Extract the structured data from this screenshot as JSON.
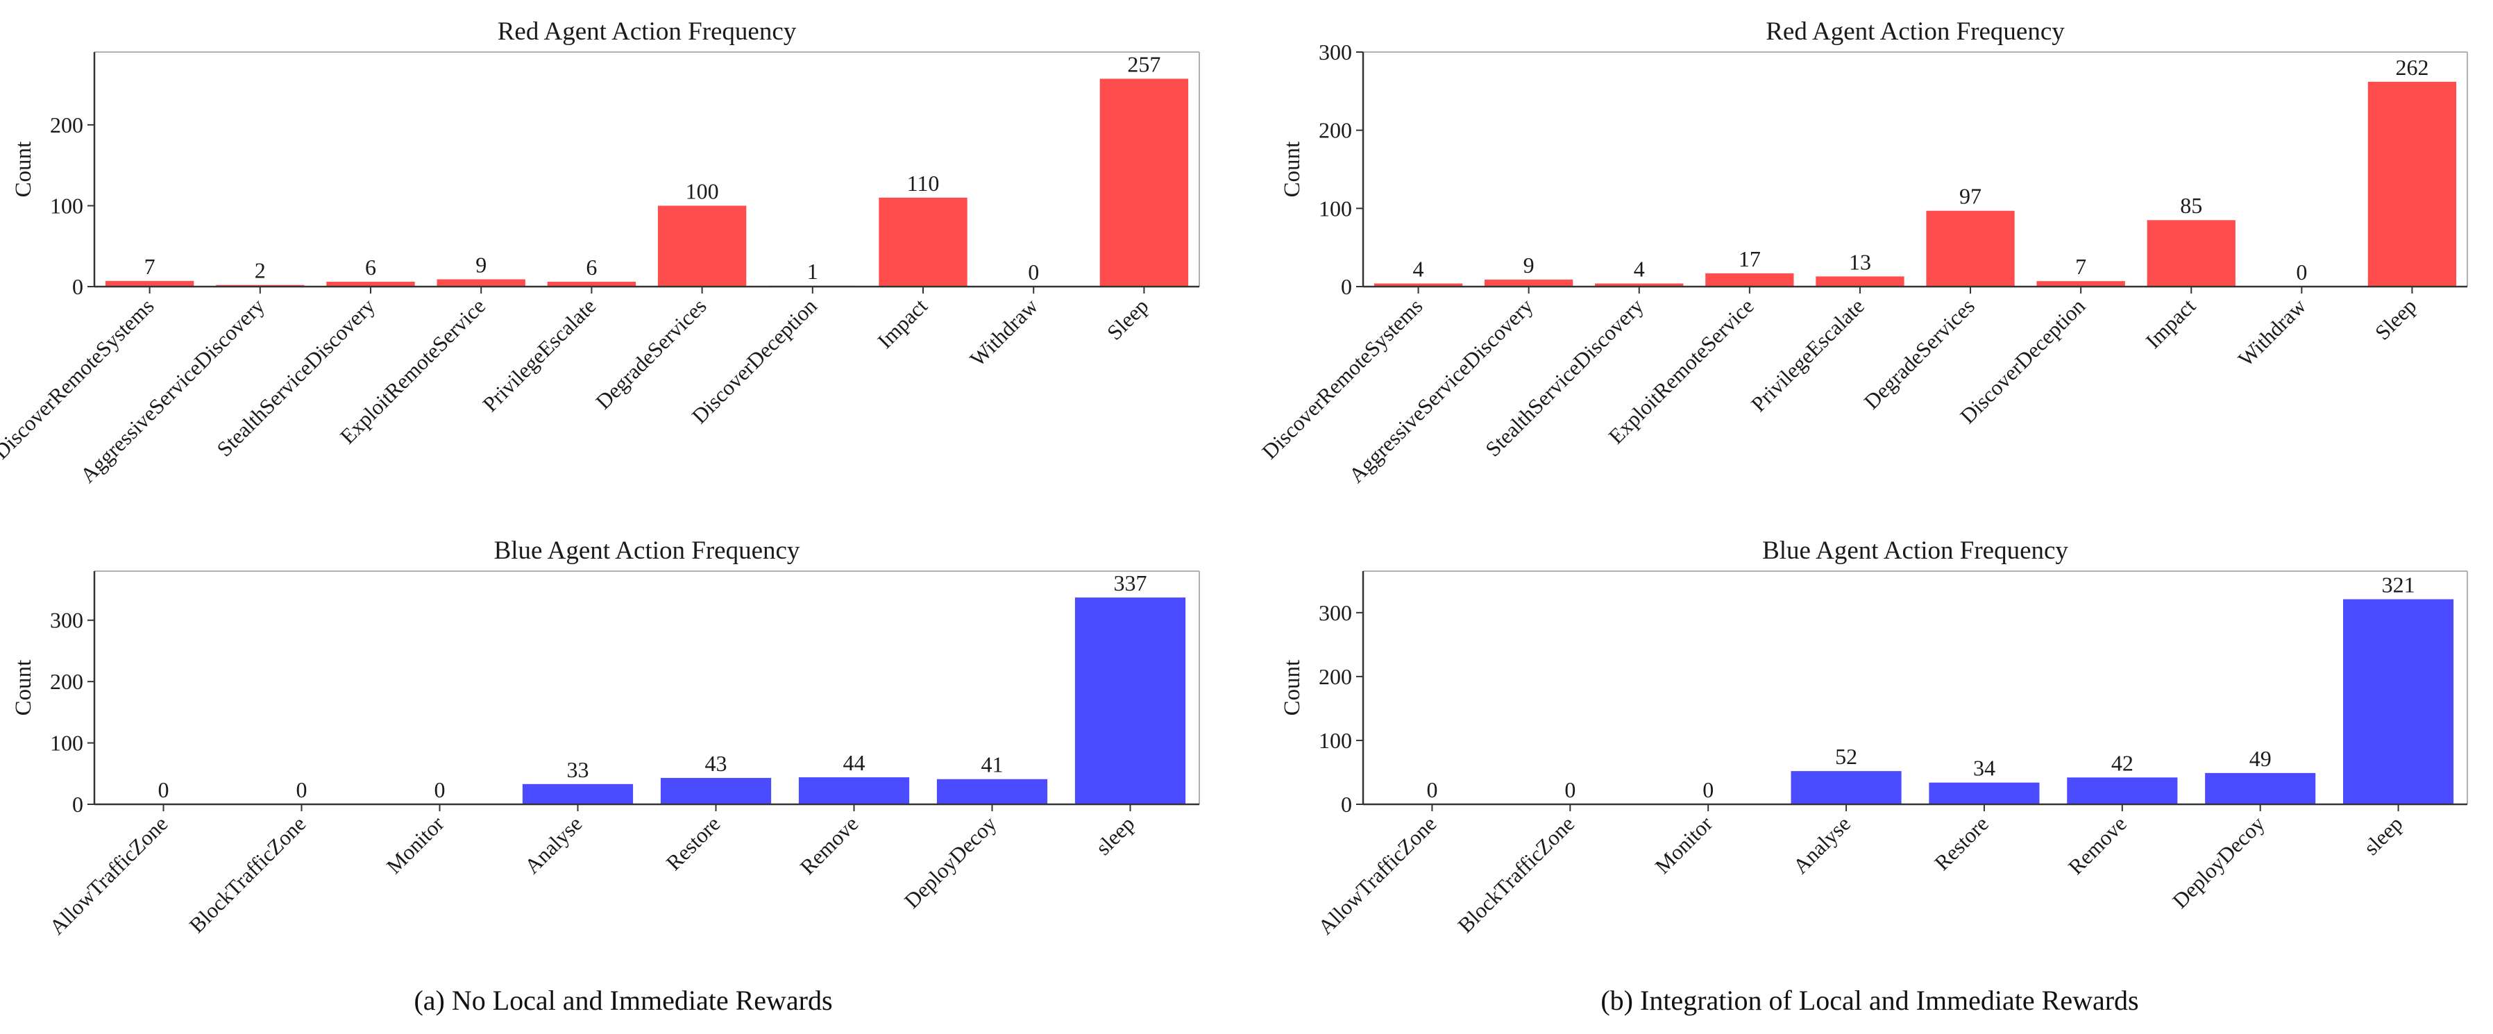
{
  "captions": {
    "a": "(a) No Local and Immediate Rewards",
    "b": "(b) Integration of Local and Immediate Rewards"
  },
  "colors": {
    "red": "#ff4d4d",
    "blue": "#4b4bff",
    "axis": "#333333"
  },
  "chart_data": [
    {
      "id": "a-red",
      "type": "bar",
      "title": "Red Agent Action Frequency",
      "ylabel": "Count",
      "xlabel": "",
      "categories": [
        "DiscoverRemoteSystems",
        "AggressiveServiceDiscovery",
        "StealthServiceDiscovery",
        "ExploitRemoteService",
        "PrivilegeEscalate",
        "DegradeServices",
        "DiscoverDeception",
        "Impact",
        "Withdraw",
        "Sleep"
      ],
      "values": [
        7,
        2,
        6,
        9,
        6,
        100,
        1,
        110,
        0,
        257
      ],
      "ylim": [
        0,
        290
      ],
      "yticks": [
        0,
        100,
        200
      ],
      "color": "red",
      "grid": false
    },
    {
      "id": "a-blue",
      "type": "bar",
      "title": "Blue Agent Action Frequency",
      "ylabel": "Count",
      "xlabel": "",
      "categories": [
        "AllowTrafficZone",
        "BlockTrafficZone",
        "Monitor",
        "Analyse",
        "Restore",
        "Remove",
        "DeployDecoy",
        "sleep"
      ],
      "values": [
        0,
        0,
        0,
        33,
        43,
        44,
        41,
        337
      ],
      "ylim": [
        0,
        380
      ],
      "yticks": [
        0,
        100,
        200,
        300
      ],
      "color": "blue",
      "grid": false
    },
    {
      "id": "b-red",
      "type": "bar",
      "title": "Red Agent Action Frequency",
      "ylabel": "Count",
      "xlabel": "",
      "categories": [
        "DiscoverRemoteSystems",
        "AggressiveServiceDiscovery",
        "StealthServiceDiscovery",
        "ExploitRemoteService",
        "PrivilegeEscalate",
        "DegradeServices",
        "DiscoverDeception",
        "Impact",
        "Withdraw",
        "Sleep"
      ],
      "values": [
        4,
        9,
        4,
        17,
        13,
        97,
        7,
        85,
        0,
        262
      ],
      "ylim": [
        0,
        300
      ],
      "yticks": [
        0,
        100,
        200,
        300
      ],
      "color": "red",
      "grid": false
    },
    {
      "id": "b-blue",
      "type": "bar",
      "title": "Blue Agent Action Frequency",
      "ylabel": "Count",
      "xlabel": "",
      "categories": [
        "AllowTrafficZone",
        "BlockTrafficZone",
        "Monitor",
        "Analyse",
        "Restore",
        "Remove",
        "DeployDecoy",
        "sleep"
      ],
      "values": [
        0,
        0,
        0,
        52,
        34,
        42,
        49,
        321
      ],
      "ylim": [
        0,
        365
      ],
      "yticks": [
        0,
        100,
        200,
        300
      ],
      "color": "blue",
      "grid": false
    }
  ]
}
